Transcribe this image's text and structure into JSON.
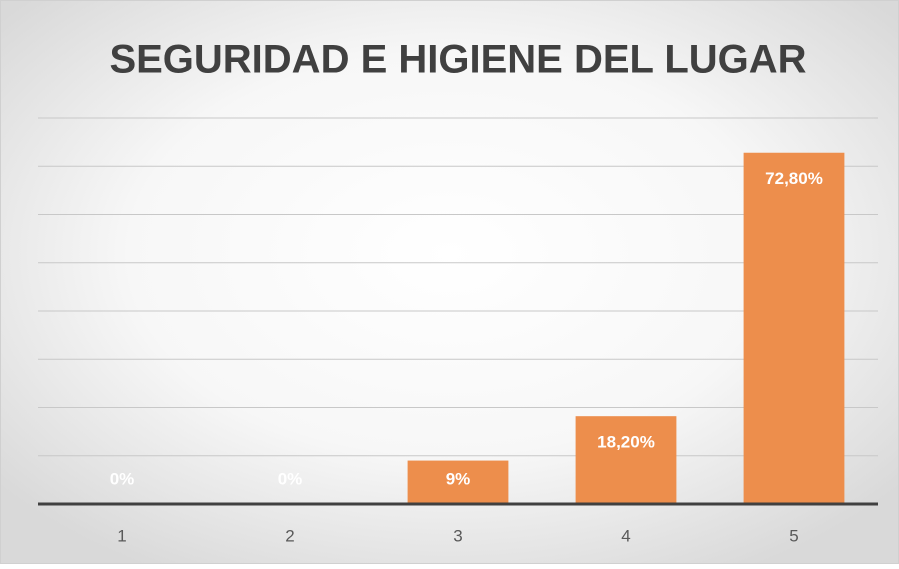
{
  "chart_data": {
    "type": "bar",
    "title": "SEGURIDAD E HIGIENE DEL LUGAR",
    "categories": [
      "1",
      "2",
      "3",
      "4",
      "5"
    ],
    "values": [
      0,
      0,
      9,
      18.2,
      72.8
    ],
    "value_labels": [
      "0%",
      "0%",
      "9%",
      "18,20%",
      "72,80%"
    ],
    "color": "#ed8e4c",
    "ylim": [
      0,
      80
    ],
    "yticks": [
      0,
      10,
      20,
      30,
      40,
      50,
      60,
      70,
      80
    ],
    "grid": true
  }
}
